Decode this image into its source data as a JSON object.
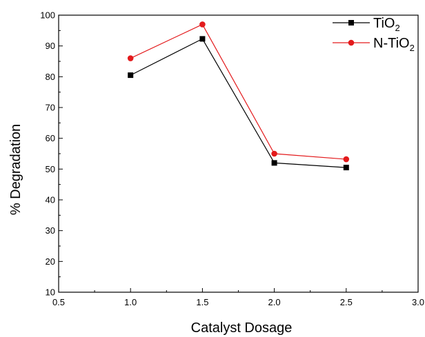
{
  "chart_data": {
    "type": "line",
    "title": "",
    "xlabel": "Catalyst Dosage",
    "ylabel": "% Degradation",
    "xlim": [
      0.5,
      3.0
    ],
    "ylim": [
      10,
      100
    ],
    "xticks": [
      "0.5",
      "1.0",
      "1.5",
      "2.0",
      "2.5",
      "3.0"
    ],
    "yticks": [
      "10",
      "20",
      "30",
      "40",
      "50",
      "60",
      "70",
      "80",
      "90",
      "100"
    ],
    "grid": false,
    "legend_position": "top-right",
    "series": [
      {
        "name": "TiO",
        "name_subscript": "2",
        "color": "#000000",
        "marker": "square",
        "x": [
          1.0,
          1.5,
          2.0,
          2.5
        ],
        "y": [
          80.5,
          92.3,
          52.0,
          50.5
        ]
      },
      {
        "name": "N-TiO",
        "name_subscript": "2",
        "color": "#e31a1c",
        "marker": "circle",
        "x": [
          1.0,
          1.5,
          2.0,
          2.5
        ],
        "y": [
          86.0,
          97.0,
          55.0,
          53.2
        ]
      }
    ]
  }
}
